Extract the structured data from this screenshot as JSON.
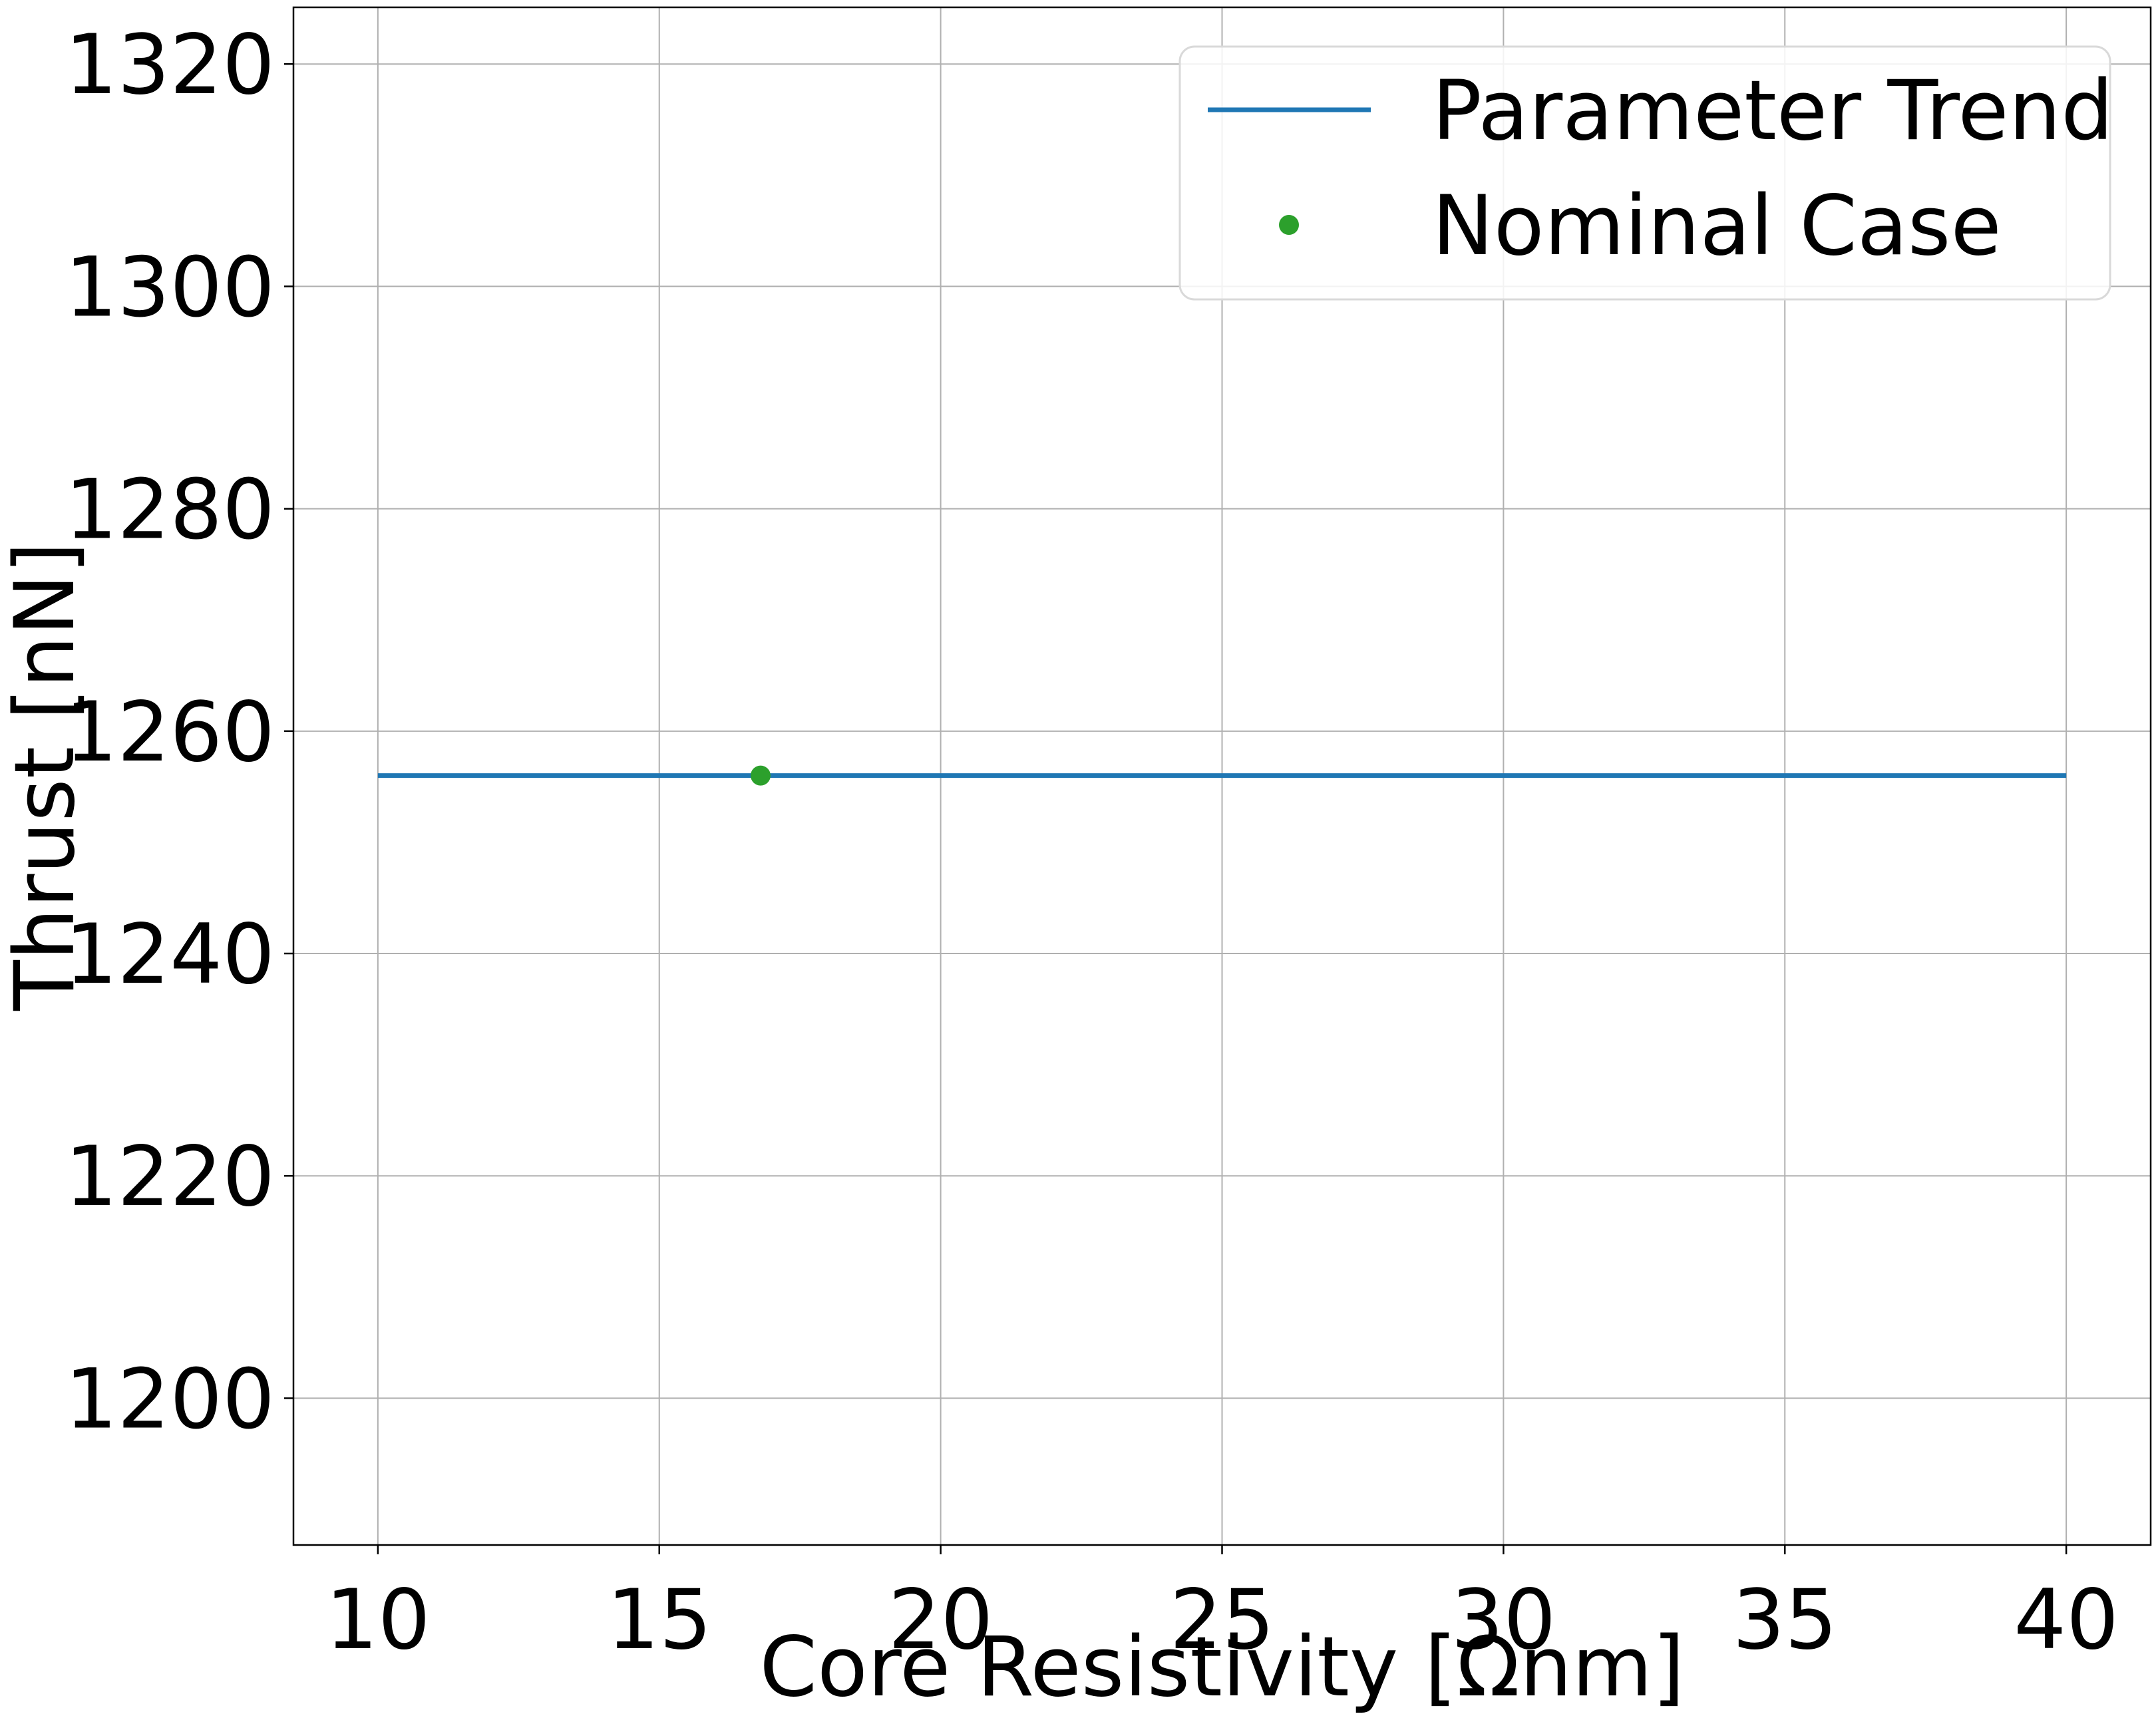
{
  "chart_data": {
    "type": "line",
    "xlabel": "Core Resistivity [Ωnm]",
    "ylabel": "Thrust [nN]",
    "xlim": [
      8.5,
      41.5
    ],
    "ylim": [
      1186.8,
      1325.1
    ],
    "x_ticks": [
      10,
      15,
      20,
      25,
      30,
      35,
      40
    ],
    "y_ticks": [
      1200,
      1220,
      1240,
      1260,
      1280,
      1300,
      1320
    ],
    "grid": true,
    "legend_position": "top-right",
    "series": [
      {
        "name": "Parameter Trend",
        "kind": "line",
        "color": "#1f77b4",
        "x": [
          10,
          15,
          20,
          25,
          30,
          35,
          40
        ],
        "y": [
          1256,
          1256,
          1256,
          1256,
          1256,
          1256,
          1256
        ]
      },
      {
        "name": "Nominal Case",
        "kind": "scatter",
        "color": "#2ca02c",
        "x": [
          16.8
        ],
        "y": [
          1256
        ]
      }
    ]
  }
}
